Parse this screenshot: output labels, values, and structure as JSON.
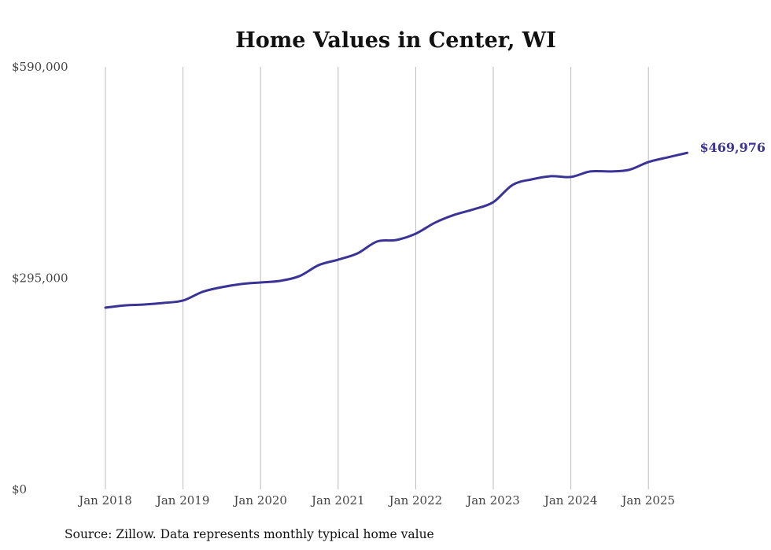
{
  "chart_data": {
    "type": "line",
    "title": "Home Values in Center, WI",
    "source": "Source: Zillow. Data represents monthly typical home value",
    "xlabel": "",
    "ylabel": "",
    "ylim": [
      0,
      590000
    ],
    "y_ticks": [
      0,
      295000,
      590000
    ],
    "y_tick_labels": [
      "$0",
      "$295,000",
      "$590,000"
    ],
    "x_tick_labels": [
      "Jan 2018",
      "Jan 2019",
      "Jan 2020",
      "Jan 2021",
      "Jan 2022",
      "Jan 2023",
      "Jan 2024",
      "Jan 2025"
    ],
    "x_ticks": [
      2018,
      2019,
      2020,
      2021,
      2022,
      2023,
      2024,
      2025
    ],
    "grid": "vertical",
    "line_color": "#3b3396",
    "end_label": "$469,976",
    "series": [
      {
        "name": "Typical home value",
        "x": [
          2018.0,
          2018.25,
          2018.5,
          2018.75,
          2019.0,
          2019.25,
          2019.5,
          2019.75,
          2020.0,
          2020.25,
          2020.5,
          2020.75,
          2021.0,
          2021.25,
          2021.5,
          2021.75,
          2022.0,
          2022.25,
          2022.5,
          2022.75,
          2023.0,
          2023.25,
          2023.5,
          2023.75,
          2024.0,
          2024.25,
          2024.5,
          2024.75,
          2025.0,
          2025.25,
          2025.5
        ],
        "values": [
          253800,
          257000,
          258200,
          260400,
          263700,
          275800,
          282400,
          286800,
          289000,
          291200,
          297800,
          313200,
          320800,
          329600,
          346100,
          348300,
          357100,
          372500,
          383500,
          391200,
          401100,
          425300,
          433000,
          437400,
          436300,
          444000,
          444000,
          446200,
          457100,
          463700,
          469976
        ]
      }
    ]
  }
}
